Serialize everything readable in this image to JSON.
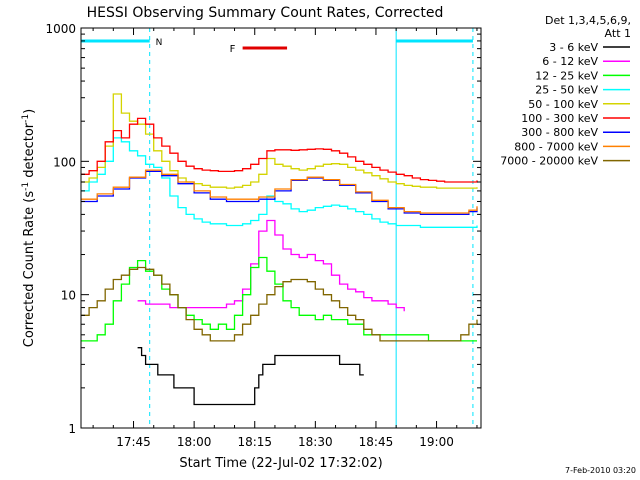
{
  "chart_data": {
    "type": "line",
    "title": "HESSI Observing Summary Count Rates, Corrected",
    "xlabel": "Start Time (22-Jul-02 17:32:02)",
    "ylabel_main": "Corrected Count Rate (s",
    "ylabel_sup1": "-1",
    "ylabel_mid": " detector",
    "ylabel_sup2": "-1",
    "ylabel_end": ")",
    "yscale": "log",
    "ylim": [
      1,
      1000
    ],
    "xlim_minutes_after_1732": [
      0,
      99
    ],
    "x_ticks": [
      "17:45",
      "18:00",
      "18:15",
      "18:30",
      "18:45",
      "19:00"
    ],
    "x_tick_minutes": [
      13,
      28,
      43,
      58,
      73,
      88
    ],
    "y_ticks": [
      "1",
      "10",
      "100",
      "1000"
    ],
    "y_tick_values": [
      1,
      10,
      100,
      1000
    ],
    "legend_header": [
      "Det 1,3,4,5,6,9,",
      "Att 1"
    ],
    "legend_placement": "right",
    "series": [
      {
        "name": "3 - 6 keV",
        "color": "#000000",
        "x": [
          14,
          15,
          16,
          17,
          18,
          19,
          20,
          21,
          22,
          23,
          24,
          25,
          26,
          27,
          28,
          29,
          30,
          31,
          32,
          33,
          34,
          35,
          36,
          37,
          38,
          39,
          40,
          41,
          42,
          43,
          44,
          45,
          46,
          47,
          48,
          49,
          50,
          51,
          52,
          53,
          54,
          55,
          56,
          57,
          58,
          59,
          60,
          61,
          62,
          63,
          64,
          65,
          66,
          67,
          68,
          69,
          70
        ],
        "y": [
          4,
          3.5,
          3,
          3,
          3,
          2.5,
          2.5,
          2.5,
          2.5,
          2,
          2,
          2,
          2,
          2,
          1.5,
          1.5,
          1.5,
          1.5,
          1.5,
          1.5,
          1.5,
          1.5,
          1.5,
          1.5,
          1.5,
          1.5,
          1.5,
          1.5,
          1.5,
          2,
          2.5,
          3,
          3,
          3,
          3.5,
          3.5,
          3.5,
          3.5,
          3.5,
          3.5,
          3.5,
          3.5,
          3.5,
          3.5,
          3.5,
          3.5,
          3.5,
          3.5,
          3.5,
          3.5,
          3,
          3,
          3,
          3,
          3,
          2.5,
          2.5
        ]
      },
      {
        "name": "6 - 12 keV",
        "color": "#ff00ff",
        "x": [
          14,
          16,
          18,
          20,
          22,
          24,
          26,
          28,
          30,
          32,
          34,
          36,
          38,
          40,
          42,
          44,
          46,
          48,
          50,
          52,
          54,
          56,
          58,
          60,
          62,
          64,
          66,
          68,
          70,
          72,
          74,
          76,
          78,
          80
        ],
        "y": [
          9,
          8.5,
          8.5,
          8.5,
          8,
          8,
          8,
          8,
          8,
          8,
          8,
          8.5,
          9,
          11,
          17,
          30,
          36,
          28,
          22,
          20,
          19,
          20,
          18,
          17,
          14,
          12,
          11,
          10.5,
          9.5,
          9,
          9,
          8.5,
          8,
          7.5
        ]
      },
      {
        "name": "12 - 25 keV",
        "color": "#00ff00",
        "x": [
          0,
          2,
          4,
          6,
          8,
          10,
          12,
          14,
          16,
          18,
          20,
          22,
          24,
          26,
          28,
          30,
          32,
          34,
          36,
          38,
          40,
          42,
          44,
          46,
          48,
          50,
          52,
          54,
          56,
          58,
          60,
          62,
          64,
          66,
          68,
          70,
          72,
          74,
          76,
          78,
          80,
          82,
          84,
          86,
          88,
          90,
          92,
          94,
          96,
          98
        ],
        "y": [
          4.5,
          4.5,
          5,
          6,
          9,
          12,
          16,
          18,
          15,
          14,
          11,
          10,
          8,
          7,
          6.5,
          6,
          5.5,
          6,
          5.5,
          7,
          10,
          16,
          19,
          15,
          12,
          9,
          8,
          7,
          7,
          6.5,
          7,
          6.5,
          6.5,
          6,
          6,
          5,
          5,
          5,
          5,
          5,
          5,
          5,
          5,
          4.5,
          4.5,
          4.5,
          4.5,
          4.5,
          4.5,
          4.5
        ]
      },
      {
        "name": "25 - 50 keV",
        "color": "#00ffff",
        "x": [
          0,
          2,
          4,
          6,
          8,
          10,
          12,
          14,
          16,
          18,
          20,
          22,
          24,
          26,
          28,
          30,
          32,
          34,
          36,
          38,
          40,
          42,
          44,
          46,
          48,
          50,
          52,
          54,
          56,
          58,
          60,
          62,
          64,
          66,
          68,
          70,
          72,
          74,
          76,
          78,
          80,
          82,
          84,
          86,
          88,
          90,
          92,
          94,
          96,
          98
        ],
        "y": [
          60,
          70,
          80,
          100,
          150,
          140,
          120,
          110,
          95,
          90,
          75,
          55,
          45,
          40,
          37,
          35,
          34,
          34,
          33,
          33,
          34,
          36,
          40,
          55,
          50,
          48,
          44,
          42,
          43,
          45,
          46,
          47,
          46,
          44,
          42,
          40,
          37,
          35,
          34,
          33,
          33,
          33,
          32,
          32,
          32,
          32,
          32,
          32,
          32,
          33
        ]
      },
      {
        "name": "50 - 100 keV",
        "color": "#d4d400",
        "x": [
          0,
          2,
          4,
          6,
          8,
          10,
          12,
          14,
          16,
          18,
          20,
          22,
          24,
          26,
          28,
          30,
          32,
          34,
          36,
          38,
          40,
          42,
          44,
          46,
          48,
          50,
          52,
          54,
          56,
          58,
          60,
          62,
          64,
          66,
          68,
          70,
          72,
          74,
          76,
          78,
          80,
          82,
          84,
          86,
          88,
          90,
          92,
          94,
          96,
          98
        ],
        "y": [
          70,
          75,
          90,
          130,
          320,
          230,
          200,
          190,
          160,
          120,
          100,
          85,
          75,
          70,
          68,
          66,
          64,
          64,
          63,
          64,
          66,
          70,
          80,
          105,
          95,
          92,
          88,
          86,
          88,
          92,
          95,
          96,
          95,
          90,
          86,
          82,
          78,
          74,
          70,
          68,
          66,
          65,
          64,
          64,
          63,
          63,
          63,
          63,
          63,
          64
        ]
      },
      {
        "name": "100 - 300 keV",
        "color": "#ff0000",
        "x": [
          0,
          2,
          4,
          6,
          8,
          10,
          12,
          14,
          16,
          18,
          20,
          22,
          24,
          26,
          28,
          30,
          32,
          34,
          36,
          38,
          40,
          42,
          44,
          46,
          48,
          50,
          52,
          54,
          56,
          58,
          60,
          62,
          64,
          66,
          68,
          70,
          72,
          74,
          76,
          78,
          80,
          82,
          84,
          86,
          88,
          90,
          92,
          94,
          96,
          98
        ],
        "y": [
          80,
          85,
          100,
          140,
          170,
          150,
          190,
          210,
          190,
          150,
          130,
          115,
          100,
          92,
          88,
          86,
          85,
          84,
          84,
          85,
          88,
          95,
          105,
          120,
          122,
          122,
          121,
          122,
          123,
          124,
          123,
          120,
          115,
          108,
          100,
          95,
          90,
          86,
          83,
          80,
          78,
          75,
          73,
          72,
          71,
          70,
          70,
          70,
          70,
          72
        ]
      },
      {
        "name": "300 - 800 keV",
        "color": "#0000ff",
        "x": [
          0,
          4,
          8,
          12,
          16,
          20,
          24,
          28,
          32,
          36,
          40,
          44,
          48,
          52,
          56,
          60,
          64,
          68,
          72,
          76,
          80,
          84,
          88,
          92,
          96,
          98
        ],
        "y": [
          50,
          55,
          62,
          75,
          84,
          78,
          68,
          58,
          52,
          50,
          50,
          52,
          60,
          72,
          75,
          72,
          66,
          58,
          50,
          44,
          41,
          40,
          40,
          40,
          42,
          45
        ]
      },
      {
        "name": "800 - 7000 keV",
        "color": "#ff8000",
        "x": [
          0,
          4,
          8,
          12,
          16,
          20,
          24,
          28,
          32,
          36,
          40,
          44,
          48,
          52,
          56,
          60,
          64,
          68,
          72,
          76,
          80,
          84,
          88,
          92,
          96,
          98
        ],
        "y": [
          52,
          57,
          64,
          76,
          86,
          80,
          70,
          60,
          54,
          52,
          52,
          54,
          62,
          73,
          76,
          73,
          67,
          59,
          51,
          45,
          42,
          41,
          41,
          41,
          43,
          46
        ]
      },
      {
        "name": "7000 - 20000 keV",
        "color": "#806600",
        "x": [
          0,
          2,
          4,
          6,
          8,
          10,
          12,
          14,
          16,
          18,
          20,
          22,
          24,
          26,
          28,
          30,
          32,
          34,
          36,
          38,
          40,
          42,
          44,
          46,
          48,
          50,
          52,
          54,
          56,
          58,
          60,
          62,
          64,
          66,
          68,
          70,
          72,
          74,
          76,
          78,
          80,
          82,
          84,
          86,
          88,
          90,
          92,
          94,
          96,
          98
        ],
        "y": [
          7,
          8,
          9,
          11,
          13,
          14,
          15.5,
          16,
          15.5,
          14,
          12,
          10,
          8,
          6.5,
          5.5,
          5,
          4.5,
          4.5,
          4.5,
          5,
          6,
          7,
          8.5,
          10,
          11.5,
          12.5,
          13,
          13,
          12.5,
          11,
          10,
          9,
          8,
          7,
          6.5,
          5.5,
          5,
          4.5,
          4.5,
          4.5,
          4.5,
          4.5,
          4.5,
          4.5,
          4.5,
          4.5,
          4.5,
          5,
          6,
          6.5
        ]
      }
    ],
    "annotations": {
      "top_bar_labels": [
        "N",
        "F"
      ],
      "night_intervals_minutes": [
        [
          0,
          17
        ],
        [
          78,
          97
        ]
      ],
      "flare_interval_minutes": [
        40,
        51
      ]
    },
    "footer_date": "7-Feb-2010 03:20"
  }
}
